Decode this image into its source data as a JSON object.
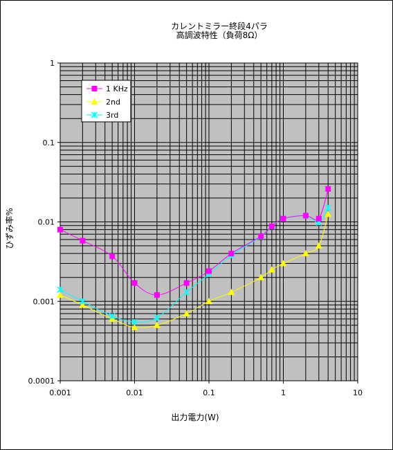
{
  "chart_data": {
    "type": "line",
    "title": "カレントミラー終段4パラ",
    "subtitle": "高調波特性（負荷8Ω）",
    "xlabel": "出力電力(W)",
    "ylabel": "ひずみ率%",
    "xscale": "log",
    "yscale": "log",
    "xlim": [
      0.001,
      10
    ],
    "ylim": [
      0.0001,
      1
    ],
    "x_ticks": [
      "0.001",
      "0.01",
      "0.1",
      "1",
      "10"
    ],
    "y_ticks": [
      "1",
      "0.1",
      "0.01",
      "0.001",
      "0.0001"
    ],
    "grid": true,
    "legend_position": "top-left",
    "series": [
      {
        "name": "1 KHz",
        "color": "#ff00ff",
        "marker": "square",
        "points": [
          [
            0.001,
            0.008
          ],
          [
            0.002,
            0.0058
          ],
          [
            0.005,
            0.0037
          ],
          [
            0.01,
            0.0017
          ],
          [
            0.02,
            0.0012
          ],
          [
            0.05,
            0.0017
          ],
          [
            0.1,
            0.0024
          ],
          [
            0.2,
            0.004
          ],
          [
            0.5,
            0.0066
          ],
          [
            0.7,
            0.0088
          ],
          [
            1,
            0.011
          ],
          [
            2,
            0.012
          ],
          [
            3,
            0.011
          ],
          [
            4,
            0.026
          ]
        ]
      },
      {
        "name": "2nd",
        "color": "#ffff00",
        "marker": "triangle",
        "points": [
          [
            0.001,
            0.0012
          ],
          [
            0.002,
            0.0009
          ],
          [
            0.005,
            0.0006
          ],
          [
            0.01,
            0.00047
          ],
          [
            0.02,
            0.0005
          ],
          [
            0.05,
            0.0007
          ],
          [
            0.1,
            0.001
          ],
          [
            0.2,
            0.0013
          ],
          [
            0.5,
            0.002
          ],
          [
            0.7,
            0.0025
          ],
          [
            1,
            0.003
          ],
          [
            2,
            0.004
          ],
          [
            3,
            0.005
          ],
          [
            4,
            0.0125
          ]
        ]
      },
      {
        "name": "3rd",
        "color": "#00ffff",
        "marker": "x-star",
        "points": [
          [
            0.001,
            0.0014
          ],
          [
            0.002,
            0.001
          ],
          [
            0.005,
            0.00065
          ],
          [
            0.01,
            0.00055
          ],
          [
            0.02,
            0.00062
          ],
          [
            0.05,
            0.0013
          ],
          [
            0.1,
            0.0022
          ],
          [
            0.2,
            0.0038
          ],
          [
            0.5,
            0.0065
          ],
          [
            0.7,
            0.0087
          ],
          [
            1,
            0.011
          ],
          [
            2,
            0.012
          ],
          [
            3,
            0.0098
          ],
          [
            4,
            0.015
          ]
        ]
      }
    ]
  }
}
